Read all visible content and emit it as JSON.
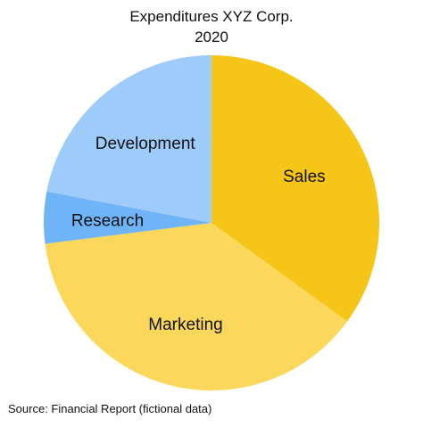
{
  "chart_data": {
    "type": "pie",
    "title": "Expenditures XYZ Corp.",
    "subtitle": "2020",
    "source": "Source: Financial Report (fictional data)",
    "start_angle_deg": 90,
    "direction": "clockwise",
    "slices": [
      {
        "label": "Sales",
        "value": 35,
        "color": "#f5c518"
      },
      {
        "label": "Marketing",
        "value": 38,
        "color": "#fbd75b"
      },
      {
        "label": "Research",
        "value": 5,
        "color": "#6fb4f7"
      },
      {
        "label": "Development",
        "value": 22,
        "color": "#9dcbfa"
      }
    ]
  }
}
